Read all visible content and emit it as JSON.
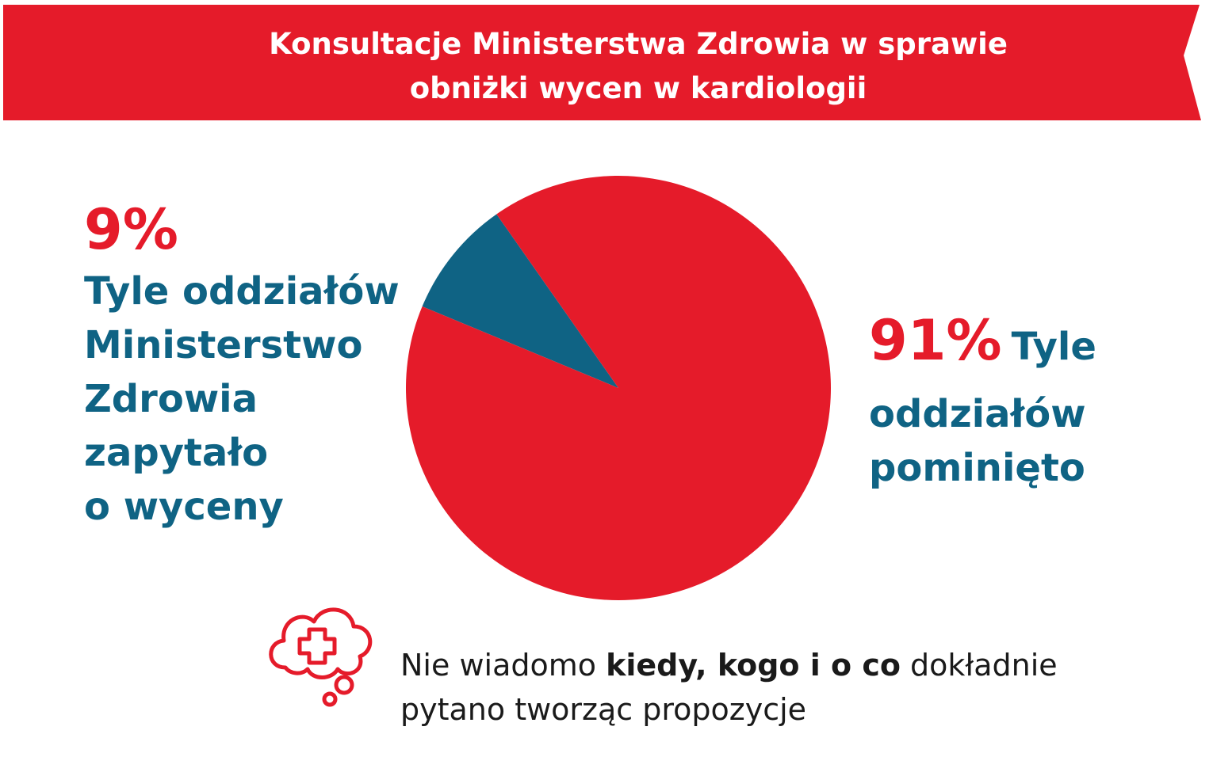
{
  "banner": {
    "title_line1": "Konsultacje Ministerstwa Zdrowia w sprawie",
    "title_line2": "obniżki wycen w kardiologii",
    "color": "#e51b2a"
  },
  "chart_data": {
    "type": "pie",
    "categories": [
      "Tyle oddziałów Ministerstwo Zdrowia zapytało o wyceny",
      "Tyle oddziałów pominięto"
    ],
    "values": [
      9,
      91
    ],
    "labels": [
      "9%",
      "91%"
    ],
    "colors": [
      "#0f6384",
      "#e51b2a"
    ],
    "title": "Konsultacje Ministerstwa Zdrowia w sprawie obniżki wycen w kardiologii"
  },
  "left_label": {
    "percent": "9%",
    "line1": "Tyle oddziałów",
    "line2": "Ministerstwo",
    "line3": "Zdrowia",
    "line4": "zapytało",
    "line5": "o wyceny"
  },
  "right_label": {
    "percent": "91%",
    "inline_word": "Tyle",
    "line2": "oddziałów",
    "line3": "pominięto"
  },
  "note": {
    "icon": "thought-cloud-medical-cross-icon",
    "part1": "Nie wiadomo ",
    "bold": "kiedy, kogo i o co",
    "part2": " dokładnie",
    "line2": "pytano tworząc propozycje"
  }
}
